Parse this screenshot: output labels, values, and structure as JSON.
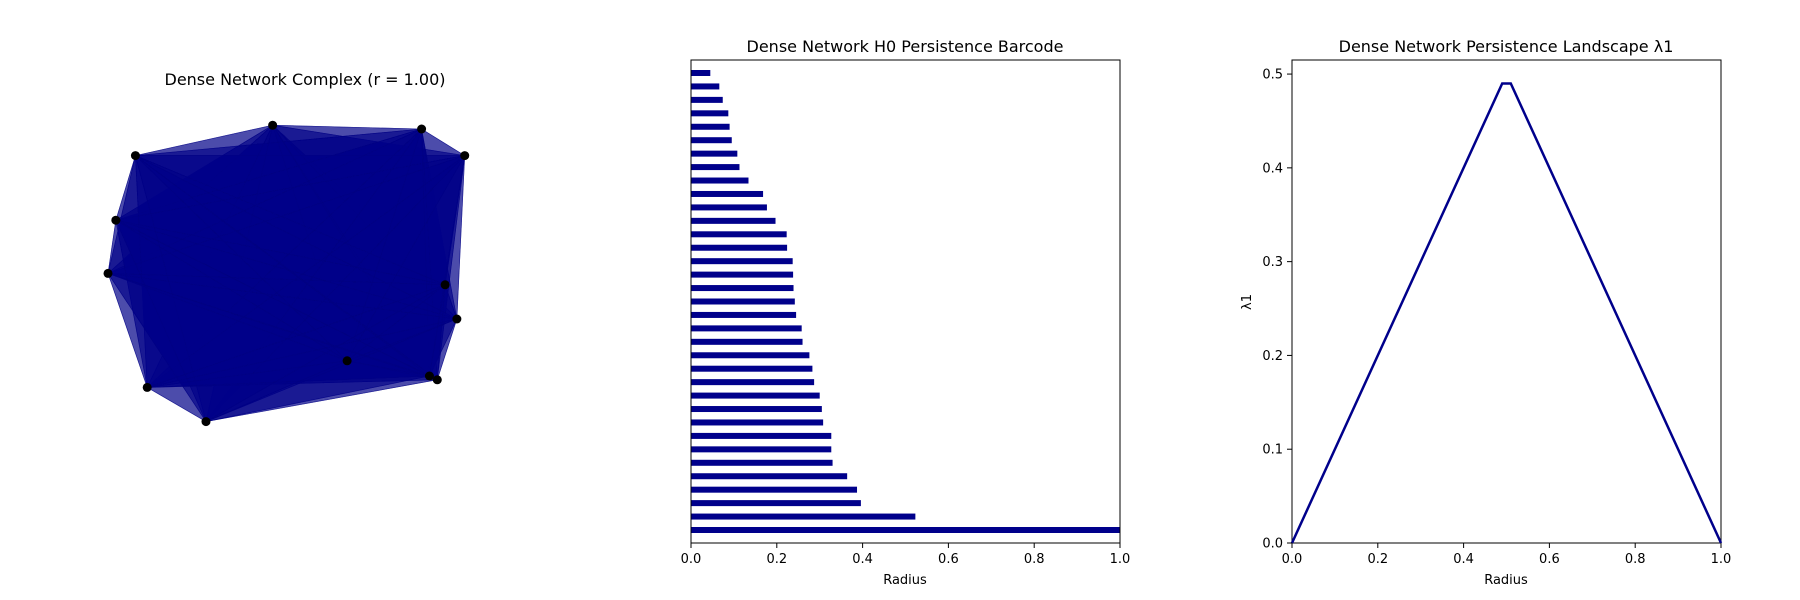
{
  "colors": {
    "fill": "#00008b",
    "node": "#000000",
    "axis": "#000000"
  },
  "chart_data": [
    {
      "type": "network",
      "title": "Dense Network Complex (r = 1.00)",
      "nodes": [
        {
          "x": 0.42,
          "y": 0.04
        },
        {
          "x": 0.8,
          "y": 0.05
        },
        {
          "x": 0.91,
          "y": 0.12
        },
        {
          "x": 0.07,
          "y": 0.12
        },
        {
          "x": 0.02,
          "y": 0.29
        },
        {
          "x": 0.0,
          "y": 0.43
        },
        {
          "x": 0.86,
          "y": 0.46
        },
        {
          "x": 0.89,
          "y": 0.55
        },
        {
          "x": 0.61,
          "y": 0.66
        },
        {
          "x": 0.82,
          "y": 0.7
        },
        {
          "x": 0.84,
          "y": 0.71
        },
        {
          "x": 0.1,
          "y": 0.73
        },
        {
          "x": 0.25,
          "y": 0.82
        }
      ]
    },
    {
      "type": "bar",
      "orientation": "horizontal",
      "title": "Dense Network H0 Persistence Barcode",
      "xlabel": "Radius",
      "ylabel": "",
      "xlim": [
        0,
        1
      ],
      "xticks": [
        "0.0",
        "0.2",
        "0.4",
        "0.6",
        "0.8",
        "1.0"
      ],
      "values": [
        0.045,
        0.066,
        0.074,
        0.087,
        0.09,
        0.095,
        0.108,
        0.113,
        0.134,
        0.168,
        0.177,
        0.197,
        0.223,
        0.224,
        0.237,
        0.238,
        0.239,
        0.242,
        0.245,
        0.258,
        0.26,
        0.276,
        0.283,
        0.287,
        0.3,
        0.305,
        0.308,
        0.327,
        0.327,
        0.33,
        0.364,
        0.387,
        0.396,
        0.523,
        1.0
      ]
    },
    {
      "type": "line",
      "title": "Dense Network Persistence Landscape λ1",
      "xlabel": "Radius",
      "ylabel": "λ1",
      "xlim": [
        0,
        1
      ],
      "ylim": [
        0,
        0.515
      ],
      "xticks": [
        "0.0",
        "0.2",
        "0.4",
        "0.6",
        "0.8",
        "1.0"
      ],
      "yticks": [
        "0.0",
        "0.1",
        "0.2",
        "0.3",
        "0.4",
        "0.5"
      ],
      "x": [
        0,
        0.49,
        0.51,
        1.0
      ],
      "y": [
        0,
        0.49,
        0.49,
        0
      ]
    }
  ]
}
